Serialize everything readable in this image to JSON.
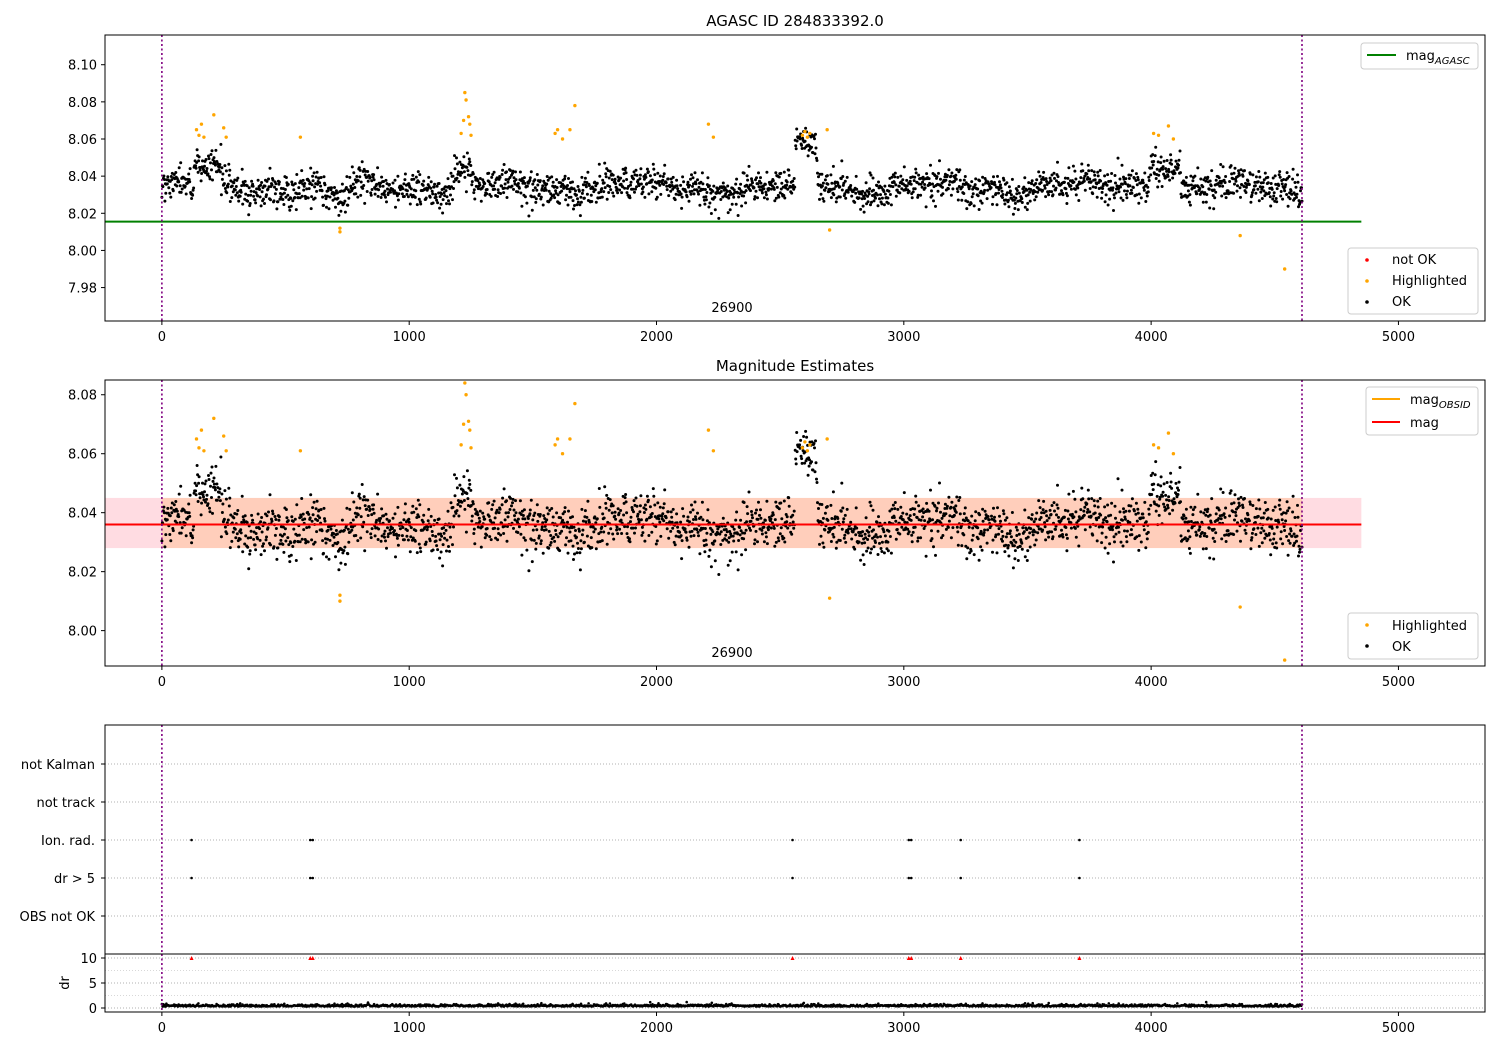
{
  "figure": {
    "top_title": "AGASC ID 284833392.0",
    "middle_title": "Magnitude Estimates",
    "obsid_label": "26900",
    "colors": {
      "ok": "#000000",
      "highlighted": "#ffa500",
      "not_ok": "#ff0000",
      "mag_agasc": "#008000",
      "mag_obsid": "#ffa500",
      "mag": "#ff0000",
      "band": "#ffc0cb",
      "vline": "#800080",
      "grid": "#b0b0b0"
    }
  },
  "chart_data": [
    {
      "type": "scatter",
      "title": "AGASC ID 284833392.0",
      "xlim": [
        -230,
        5350
      ],
      "ylim": [
        7.962,
        8.116
      ],
      "xticks": [
        0,
        1000,
        2000,
        3000,
        4000,
        5000
      ],
      "yticks": [
        7.98,
        8.0,
        8.02,
        8.04,
        8.06,
        8.08,
        8.1
      ],
      "obs_boundaries": [
        0,
        4610
      ],
      "obs_label": "26900",
      "x_range": [
        0,
        4610
      ],
      "baseline": 8.034,
      "scatter": 0.008,
      "mag_agasc": 8.0155,
      "mag_agasc_xrange": [
        -230,
        4850
      ],
      "legend_lines": [
        {
          "name": "mag",
          "subscript": "AGASC"
        }
      ],
      "legend_points": [
        "not OK",
        "Highlighted",
        "OK"
      ],
      "highlighted": [
        [
          140,
          8.065
        ],
        [
          150,
          8.062
        ],
        [
          160,
          8.068
        ],
        [
          170,
          8.061
        ],
        [
          210,
          8.073
        ],
        [
          250,
          8.066
        ],
        [
          260,
          8.061
        ],
        [
          560,
          8.061
        ],
        [
          720,
          8.012
        ],
        [
          720,
          8.01
        ],
        [
          1210,
          8.063
        ],
        [
          1220,
          8.07
        ],
        [
          1225,
          8.085
        ],
        [
          1230,
          8.081
        ],
        [
          1240,
          8.072
        ],
        [
          1245,
          8.068
        ],
        [
          1250,
          8.062
        ],
        [
          1590,
          8.063
        ],
        [
          1600,
          8.065
        ],
        [
          1620,
          8.06
        ],
        [
          1650,
          8.065
        ],
        [
          1670,
          8.078
        ],
        [
          2210,
          8.068
        ],
        [
          2230,
          8.061
        ],
        [
          2590,
          8.062
        ],
        [
          2600,
          8.064
        ],
        [
          2610,
          8.061
        ],
        [
          2620,
          8.063
        ],
        [
          2690,
          8.065
        ],
        [
          2700,
          8.011
        ],
        [
          4010,
          8.063
        ],
        [
          4030,
          8.062
        ],
        [
          4070,
          8.067
        ],
        [
          4090,
          8.06
        ],
        [
          4360,
          8.008
        ],
        [
          4540,
          7.99
        ]
      ]
    },
    {
      "type": "scatter",
      "title": "Magnitude Estimates",
      "xlim": [
        -230,
        5350
      ],
      "ylim": [
        7.988,
        8.085
      ],
      "xticks": [
        0,
        1000,
        2000,
        3000,
        4000,
        5000
      ],
      "yticks": [
        8.0,
        8.02,
        8.04,
        8.06,
        8.08
      ],
      "obs_boundaries": [
        0,
        4610
      ],
      "obs_label": "26900",
      "mag": 8.036,
      "mag_band": [
        8.028,
        8.045
      ],
      "mag_xrange": [
        -230,
        4850
      ],
      "obsid_band": [
        8.028,
        8.045
      ],
      "obsid_xrange": [
        0,
        4610
      ],
      "legend_lines": [
        {
          "name": "mag",
          "subscript": "OBSID"
        },
        {
          "name": "mag",
          "subscript": ""
        }
      ],
      "legend_points": [
        "Highlighted",
        "OK"
      ]
    },
    {
      "type": "scatter",
      "xlim": [
        -230,
        5350
      ],
      "categories": [
        "OBS not OK",
        "dr > 5",
        "Ion. rad.",
        "not track",
        "not Kalman"
      ],
      "flag_x": [
        120,
        600,
        610,
        2550,
        3020,
        3030,
        3230,
        3710
      ],
      "flagged_categories": [
        "dr > 5",
        "Ion. rad."
      ]
    },
    {
      "type": "scatter",
      "ylabel": "dr",
      "xlim": [
        -230,
        5350
      ],
      "ylim": [
        -0.8,
        10.8
      ],
      "yticks": [
        0,
        5,
        10
      ],
      "xticks": [
        0,
        1000,
        2000,
        3000,
        4000,
        5000
      ],
      "flag_x": [
        120,
        600,
        610,
        2550,
        3020,
        3030,
        3230,
        3710
      ],
      "flag_value": 10,
      "dr_baseline": 0.3
    }
  ]
}
